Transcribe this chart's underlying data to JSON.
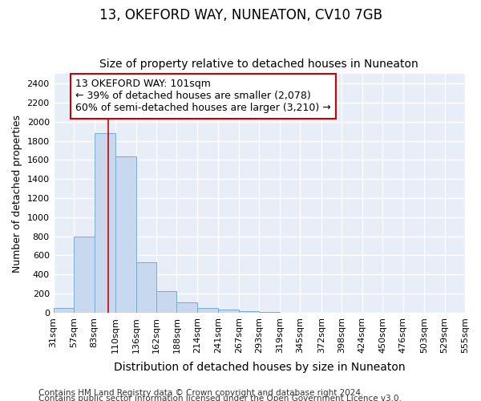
{
  "title": "13, OKEFORD WAY, NUNEATON, CV10 7GB",
  "subtitle": "Size of property relative to detached houses in Nuneaton",
  "xlabel": "Distribution of detached houses by size in Nuneaton",
  "ylabel": "Number of detached properties",
  "bar_values": [
    50,
    800,
    1880,
    1640,
    530,
    230,
    105,
    50,
    30,
    20,
    5,
    3,
    2,
    1,
    1,
    0,
    0,
    0,
    0,
    0
  ],
  "bin_edges": [
    31,
    57,
    83,
    110,
    136,
    162,
    188,
    214,
    241,
    267,
    293,
    319,
    345,
    372,
    398,
    424,
    450,
    476,
    503,
    529,
    555
  ],
  "tick_labels": [
    "31sqm",
    "57sqm",
    "83sqm",
    "110sqm",
    "136sqm",
    "162sqm",
    "188sqm",
    "214sqm",
    "241sqm",
    "267sqm",
    "293sqm",
    "319sqm",
    "345sqm",
    "372sqm",
    "398sqm",
    "424sqm",
    "450sqm",
    "476sqm",
    "503sqm",
    "529sqm",
    "555sqm"
  ],
  "bar_color": "#c8d8ee",
  "bar_edge_color": "#7aaad0",
  "vline_x": 101,
  "vline_color": "#cc0000",
  "annotation_text": "13 OKEFORD WAY: 101sqm\n← 39% of detached houses are smaller (2,078)\n60% of semi-detached houses are larger (3,210) →",
  "annotation_box_color": "#ffffff",
  "annotation_box_edge": "#cc0000",
  "ylim": [
    0,
    2500
  ],
  "yticks": [
    0,
    200,
    400,
    600,
    800,
    1000,
    1200,
    1400,
    1600,
    1800,
    2000,
    2200,
    2400
  ],
  "plot_bg_color": "#e8eef8",
  "fig_bg_color": "#ffffff",
  "grid_color": "#ffffff",
  "footer_line1": "Contains HM Land Registry data © Crown copyright and database right 2024.",
  "footer_line2": "Contains public sector information licensed under the Open Government Licence v3.0.",
  "title_fontsize": 12,
  "subtitle_fontsize": 10,
  "ylabel_fontsize": 9,
  "xlabel_fontsize": 10,
  "tick_fontsize": 8,
  "annotation_fontsize": 9,
  "footer_fontsize": 7.5
}
